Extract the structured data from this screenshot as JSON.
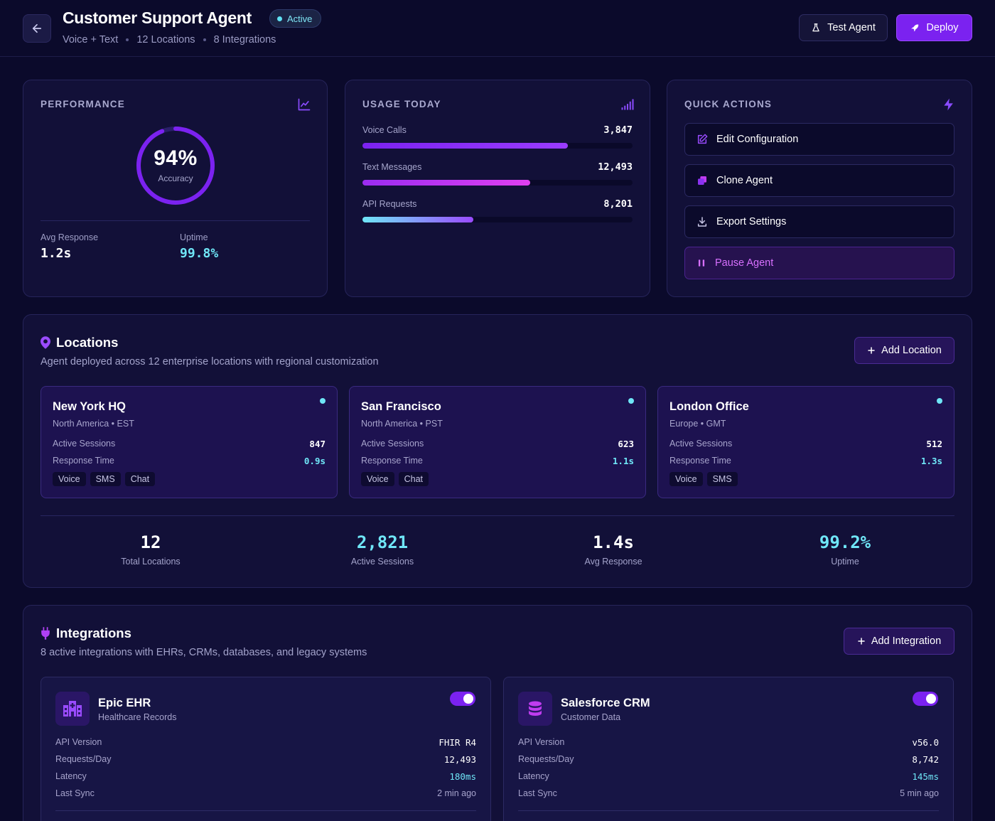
{
  "header": {
    "title": "Customer Support Agent",
    "status": "Active",
    "meta": [
      "Voice + Text",
      "12 Locations",
      "8 Integrations"
    ],
    "test_label": "Test Agent",
    "deploy_label": "Deploy"
  },
  "performance": {
    "label": "PERFORMANCE",
    "accuracy_value": "94%",
    "accuracy_fraction": 0.94,
    "accuracy_label": "Accuracy",
    "avg_response_label": "Avg Response",
    "avg_response_value": "1.2s",
    "uptime_label": "Uptime",
    "uptime_value": "99.8%"
  },
  "usage": {
    "label": "USAGE TODAY",
    "items": [
      {
        "label": "Voice Calls",
        "value": "3,847",
        "fraction": 0.76
      },
      {
        "label": "Text Messages",
        "value": "12,493",
        "fraction": 0.62
      },
      {
        "label": "API Requests",
        "value": "8,201",
        "fraction": 0.41
      }
    ]
  },
  "quick_actions": {
    "label": "QUICK ACTIONS",
    "items": [
      {
        "label": "Edit Configuration",
        "icon": "edit-icon"
      },
      {
        "label": "Clone Agent",
        "icon": "clone-icon"
      },
      {
        "label": "Export Settings",
        "icon": "download-icon"
      },
      {
        "label": "Pause Agent",
        "icon": "pause-icon"
      }
    ]
  },
  "locations": {
    "title": "Locations",
    "description": "Agent deployed across 12 enterprise locations with regional customization",
    "add_label": "Add Location",
    "cards": [
      {
        "name": "New York HQ",
        "region": "North America • EST",
        "sessions_label": "Active Sessions",
        "sessions": "847",
        "response_label": "Response Time",
        "response": "0.9s",
        "tags": [
          "Voice",
          "SMS",
          "Chat"
        ]
      },
      {
        "name": "San Francisco",
        "region": "North America • PST",
        "sessions_label": "Active Sessions",
        "sessions": "623",
        "response_label": "Response Time",
        "response": "1.1s",
        "tags": [
          "Voice",
          "Chat"
        ]
      },
      {
        "name": "London Office",
        "region": "Europe • GMT",
        "sessions_label": "Active Sessions",
        "sessions": "512",
        "response_label": "Response Time",
        "response": "1.3s",
        "tags": [
          "Voice",
          "SMS"
        ]
      }
    ],
    "summary": [
      {
        "value": "12",
        "label": "Total Locations"
      },
      {
        "value": "2,821",
        "label": "Active Sessions"
      },
      {
        "value": "1.4s",
        "label": "Avg Response"
      },
      {
        "value": "99.2%",
        "label": "Uptime"
      }
    ]
  },
  "integrations": {
    "title": "Integrations",
    "description": "8 active integrations with EHRs, CRMs, databases, and legacy systems",
    "add_label": "Add Integration",
    "cards": [
      {
        "name": "Epic EHR",
        "type": "Healthcare Records",
        "icon": "hospital-icon",
        "rows": [
          {
            "label": "API Version",
            "value": "FHIR R4"
          },
          {
            "label": "Requests/Day",
            "value": "12,493"
          },
          {
            "label": "Latency",
            "value": "180ms"
          },
          {
            "label": "Last Sync",
            "value": "2 min ago"
          }
        ]
      },
      {
        "name": "Salesforce CRM",
        "type": "Customer Data",
        "icon": "database-icon",
        "rows": [
          {
            "label": "API Version",
            "value": "v56.0"
          },
          {
            "label": "Requests/Day",
            "value": "8,742"
          },
          {
            "label": "Latency",
            "value": "145ms"
          },
          {
            "label": "Last Sync",
            "value": "5 min ago"
          }
        ]
      }
    ]
  },
  "colors": {
    "background": "#0b0a2b",
    "accent": "#7b22f0",
    "cyan": "#6fe6f7",
    "magenta": "#d870ff"
  }
}
